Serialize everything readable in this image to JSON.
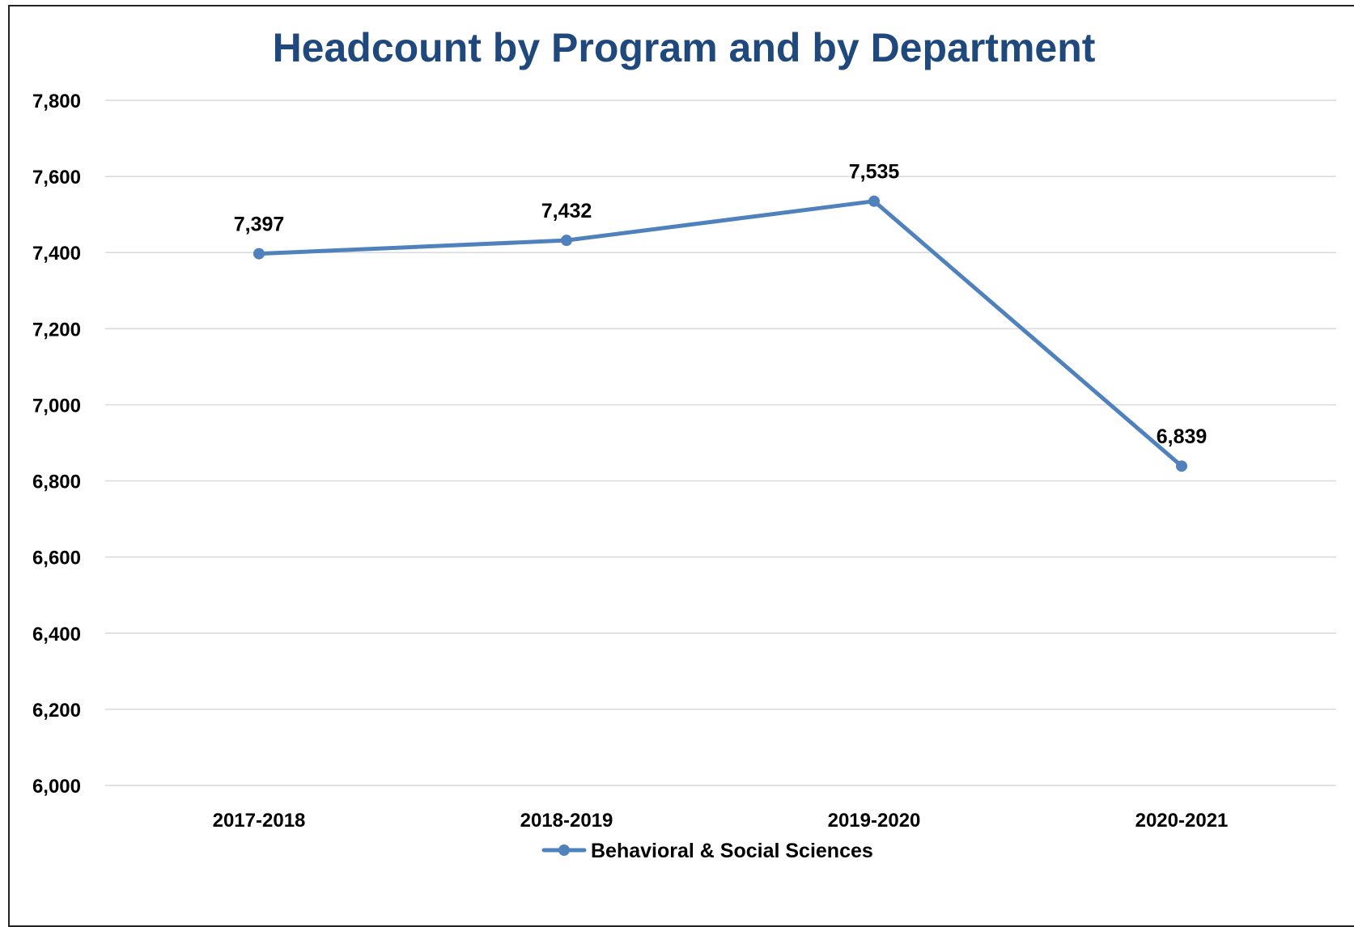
{
  "chart_data": {
    "type": "line",
    "title": "Headcount by Program and by Department",
    "categories": [
      "2017-2018",
      "2018-2019",
      "2019-2020",
      "2020-2021"
    ],
    "series": [
      {
        "name": "Behavioral & Social Sciences",
        "values": [
          7397,
          7432,
          7535,
          6839
        ],
        "color": "#4f81bd"
      }
    ],
    "data_labels": [
      "7,397",
      "7,432",
      "7,535",
      "6,839"
    ],
    "yticks": [
      6000,
      6200,
      6400,
      6600,
      6800,
      7000,
      7200,
      7400,
      7600,
      7800
    ],
    "ytick_labels": [
      "6,000",
      "6,200",
      "6,400",
      "6,600",
      "6,800",
      "7,000",
      "7,200",
      "7,400",
      "7,600",
      "7,800"
    ],
    "ylim": [
      6000,
      7800
    ],
    "xlabel": "",
    "ylabel": "",
    "grid": true,
    "legend": "bottom-center",
    "title_color": "#1f497d",
    "grid_color": "#d9d9d9"
  }
}
